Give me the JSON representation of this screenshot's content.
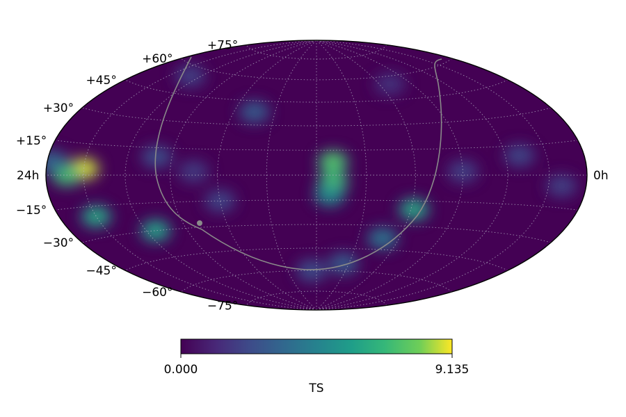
{
  "chart_data": {
    "type": "heatmap",
    "projection": "hammer",
    "title": "",
    "lon_labels": [
      "24h",
      "0h"
    ],
    "lat_ticks": [
      {
        "lat": 75,
        "label": "+75°"
      },
      {
        "lat": 60,
        "label": "+60°"
      },
      {
        "lat": 45,
        "label": "+45°"
      },
      {
        "lat": 30,
        "label": "+30°"
      },
      {
        "lat": 15,
        "label": "+15°"
      },
      {
        "lat": -15,
        "label": "−15°"
      },
      {
        "lat": -30,
        "label": "−30°"
      },
      {
        "lat": -45,
        "label": "−45°"
      },
      {
        "lat": -60,
        "label": "−60°"
      },
      {
        "lat": -75,
        "label": "−75°"
      }
    ],
    "grid": true,
    "colormap": "viridis",
    "colorbar": {
      "label": "TS",
      "min": 0.0,
      "max": 9.135,
      "min_label": "0.000",
      "max_label": "9.135"
    },
    "hotspots": [
      {
        "lon": 150,
        "lat": 3,
        "ts": 8.5
      },
      {
        "lon": 163,
        "lat": 0,
        "ts": 6.5
      },
      {
        "lon": 150,
        "lat": -20,
        "ts": 5.5
      },
      {
        "lon": 113,
        "lat": -30,
        "ts": 5.2
      },
      {
        "lon": -62,
        "lat": -20,
        "ts": 5.5
      },
      {
        "lon": -48,
        "lat": -38,
        "ts": 4.0
      },
      {
        "lon": -10,
        "lat": 8,
        "ts": 6.8
      },
      {
        "lon": -10,
        "lat": -4,
        "ts": 6.5
      },
      {
        "lon": -8,
        "lat": -12,
        "ts": 5.0
      },
      {
        "lon": 176,
        "lat": 6,
        "ts": 3.5
      },
      {
        "lon": 45,
        "lat": 38,
        "ts": 3.0
      },
      {
        "lon": -25,
        "lat": -55,
        "ts": 3.0
      },
      {
        "lon": 5,
        "lat": -60,
        "ts": 2.5
      },
      {
        "lon": 130,
        "lat": 55,
        "ts": 2.0
      },
      {
        "lon": -90,
        "lat": 2,
        "ts": 2.0
      },
      {
        "lon": 60,
        "lat": -15,
        "ts": 2.2
      },
      {
        "lon": 100,
        "lat": 10,
        "ts": 2.5
      },
      {
        "lon": 75,
        "lat": 2,
        "ts": 1.8
      },
      {
        "lon": -130,
        "lat": 10,
        "ts": 2.2
      },
      {
        "lon": -160,
        "lat": -5,
        "ts": 2.0
      },
      {
        "lon": -70,
        "lat": 55,
        "ts": 1.5
      }
    ]
  }
}
